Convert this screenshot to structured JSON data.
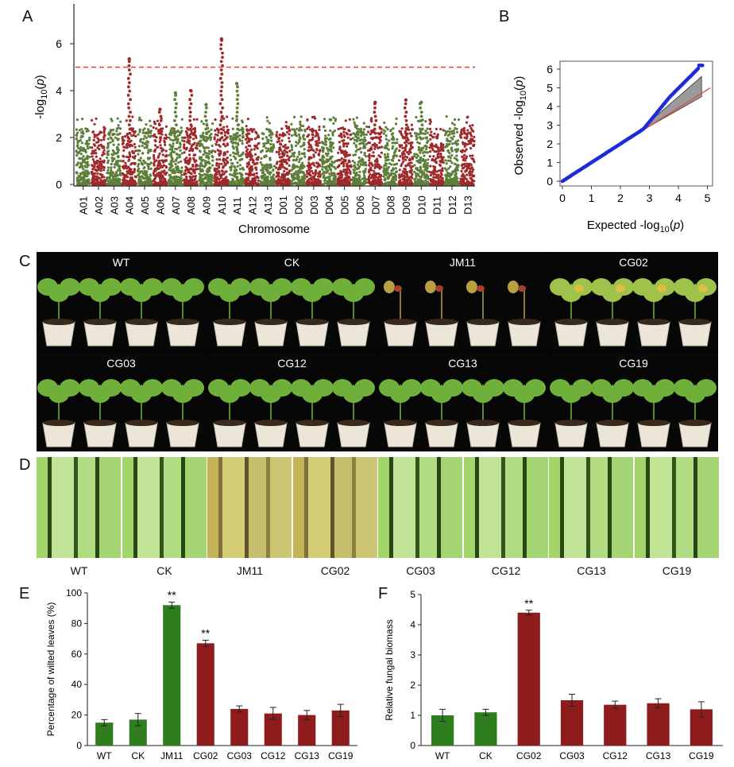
{
  "panel_labels": {
    "a": "A",
    "b": "B",
    "c": "C",
    "d": "D",
    "e": "E",
    "f": "F"
  },
  "panel_a": {
    "ylabel": "-log10(p)",
    "xlabel": "Chromosome",
    "yticks": [
      "0",
      "2",
      "4",
      "6"
    ],
    "chromosomes": [
      "A01",
      "A02",
      "A03",
      "A04",
      "A05",
      "A06",
      "A07",
      "A08",
      "A09",
      "A10",
      "A11",
      "A12",
      "A13",
      "D01",
      "D02",
      "D03",
      "D04",
      "D05",
      "D06",
      "D07",
      "D08",
      "D09",
      "D10",
      "D11",
      "D12",
      "D13"
    ],
    "threshold": 5,
    "colors": {
      "green": "#5d7f3a",
      "red": "#9e2a2b",
      "threshold": "#e0413a"
    }
  },
  "panel_b": {
    "xlabel": "Expected -log10(p)",
    "ylabel": "Observed -log10(p)",
    "xticks": [
      "0",
      "1",
      "2",
      "3",
      "4",
      "5"
    ],
    "yticks": [
      "0",
      "1",
      "2",
      "3",
      "4",
      "5",
      "6"
    ],
    "colors": {
      "points": "#1f2bd6",
      "line": "#e0413a",
      "band": "#9a9a9a"
    }
  },
  "panel_c": {
    "row1": [
      "WT",
      "CK",
      "JM11",
      "CG02"
    ],
    "row2": [
      "CG03",
      "CG12",
      "CG13",
      "CG19"
    ]
  },
  "panel_d": {
    "labels": [
      "WT",
      "CK",
      "JM11",
      "CG02",
      "CG03",
      "CG12",
      "CG13",
      "CG19"
    ]
  },
  "chart_data": [
    {
      "type": "bar",
      "panel": "E",
      "ylabel": "Percentage of wilted leaves (%)",
      "xlabel": "",
      "categories": [
        "WT",
        "CK",
        "JM11",
        "CG02",
        "CG03",
        "CG12",
        "CG13",
        "CG19"
      ],
      "values": [
        15,
        17,
        92,
        67,
        24,
        21,
        20,
        23
      ],
      "errors": [
        2,
        4,
        2,
        2,
        2,
        4,
        3,
        4
      ],
      "colors": [
        "#2e7d1e",
        "#2e7d1e",
        "#2e7d1e",
        "#8e1c1c",
        "#8e1c1c",
        "#8e1c1c",
        "#8e1c1c",
        "#8e1c1c"
      ],
      "annotations": [
        "",
        "",
        "**",
        "**",
        "",
        "",
        "",
        ""
      ],
      "ylim": [
        0,
        100
      ],
      "yticks": [
        "0",
        "20",
        "40",
        "60",
        "80",
        "100"
      ]
    },
    {
      "type": "bar",
      "panel": "F",
      "ylabel": "Relative fungal biomass",
      "xlabel": "",
      "categories": [
        "WT",
        "CK",
        "CG02",
        "CG03",
        "CG12",
        "CG13",
        "CG19"
      ],
      "values": [
        1.0,
        1.1,
        4.4,
        1.5,
        1.35,
        1.4,
        1.2
      ],
      "errors": [
        0.2,
        0.1,
        0.08,
        0.2,
        0.12,
        0.15,
        0.25
      ],
      "colors": [
        "#2e7d1e",
        "#2e7d1e",
        "#8e1c1c",
        "#8e1c1c",
        "#8e1c1c",
        "#8e1c1c",
        "#8e1c1c"
      ],
      "annotations": [
        "",
        "",
        "**",
        "",
        "",
        "",
        ""
      ],
      "ylim": [
        0,
        5
      ],
      "yticks": [
        "0",
        "1",
        "2",
        "3",
        "4",
        "5"
      ]
    }
  ]
}
